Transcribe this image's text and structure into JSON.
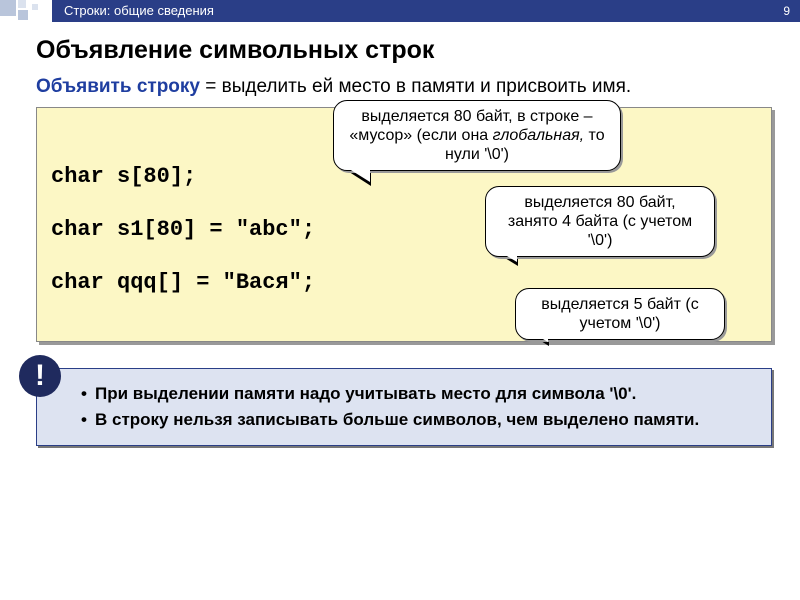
{
  "header": {
    "breadcrumb": "Строки: общие сведения",
    "page_number": "9"
  },
  "title": "Объявление символьных строк",
  "intro": {
    "term": "Объявить строку",
    "rest": " = выделить ей место в памяти и присвоить имя."
  },
  "code": {
    "line1": "char s[80];",
    "line2": "char s1[80] = \"abc\";",
    "line3": "char qqq[] = \"Вася\";"
  },
  "callouts": {
    "c1_a": "выделяется 80 байт, в строке – «мусор» (если она ",
    "c1_b": "глобальная,",
    "c1_c": " то нули '\\0')",
    "c2": "выделяется 80 байт, занято 4 байта (с учетом '\\0')",
    "c3": "выделяется 5 байт (с учетом '\\0')"
  },
  "notes": {
    "bang": "!",
    "item1": "При выделении памяти надо учитывать место для символа '\\0'.",
    "item2": "В строку нельзя записывать больше символов, чем выделено памяти."
  },
  "colors": {
    "header_bg": "#2a3e87",
    "code_bg": "#fcf7c5",
    "note_bg": "#dde3f1",
    "term_color": "#1f3ea0"
  }
}
